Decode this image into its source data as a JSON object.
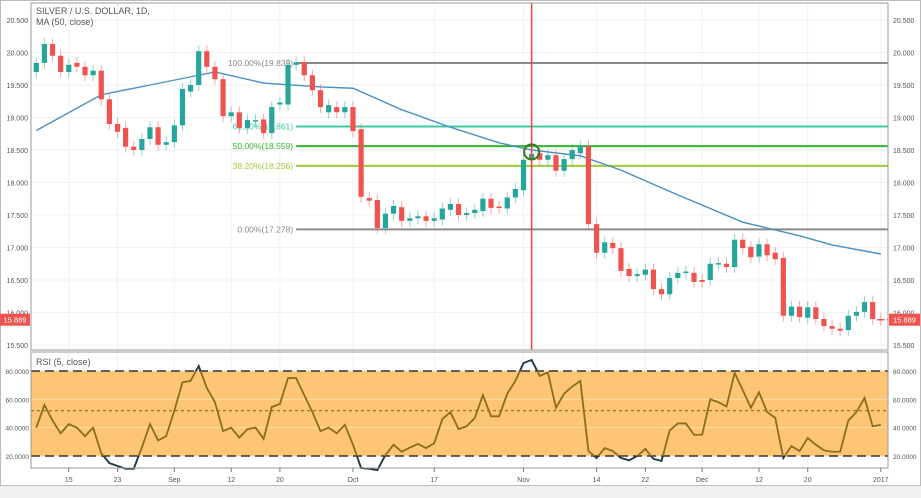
{
  "header": {
    "symbol_title": "SILVER / U.S. DOLLAR, 1D,",
    "ma_label": "MA (50, close)"
  },
  "rsi": {
    "label": "RSI (5, close)",
    "levels": [
      80,
      52,
      20
    ],
    "tick_labels": [
      "80.0000",
      "60.0000",
      "40.0000",
      "20.0000"
    ],
    "tick_values": [
      80,
      60,
      40,
      20
    ],
    "values": [
      40,
      56,
      45,
      36,
      42.5,
      40,
      34,
      40,
      22,
      15,
      13,
      11,
      11,
      26,
      42.5,
      31,
      34,
      52,
      72,
      73,
      83.5,
      68,
      58,
      37.6,
      40,
      33,
      39,
      40,
      32,
      54.6,
      56.7,
      75,
      75,
      63,
      51,
      37.6,
      40,
      36,
      42,
      28,
      11.5,
      11,
      10,
      20.7,
      28,
      23,
      26,
      28.5,
      25.6,
      29,
      46,
      51,
      39,
      41,
      46.8,
      63,
      48,
      48,
      64,
      73,
      85.6,
      87.8,
      76.5,
      79,
      54,
      64,
      69,
      73,
      23.5,
      18.6,
      25.6,
      23.5,
      18.6,
      17,
      20,
      25,
      18,
      16.5,
      38,
      43,
      43,
      35,
      35,
      60,
      58,
      55,
      78.6,
      66.6,
      54,
      65,
      51,
      47,
      18.6,
      27,
      23.5,
      32.7,
      28,
      24,
      23,
      23,
      45,
      51,
      61,
      41,
      42
    ]
  },
  "price_axis": {
    "tick_labels": [
      "20.500",
      "20.000",
      "19.500",
      "19.000",
      "18.500",
      "18.000",
      "17.500",
      "17.000",
      "16.500",
      "16.000",
      "15.500"
    ],
    "tick_values": [
      20.5,
      20,
      19.5,
      19,
      18.5,
      18,
      17.5,
      17,
      16.5,
      16,
      15.5
    ],
    "last_price": "15.889",
    "last_price_value": 15.889
  },
  "date_axis": {
    "ticks": [
      {
        "label": "15",
        "bar": 4
      },
      {
        "label": "23",
        "bar": 10
      },
      {
        "label": "Sep",
        "bar": 17
      },
      {
        "label": "12",
        "bar": 24
      },
      {
        "label": "20",
        "bar": 30
      },
      {
        "label": "Oct",
        "bar": 39
      },
      {
        "label": "17",
        "bar": 49
      },
      {
        "label": "Nov",
        "bar": 60
      },
      {
        "label": "14",
        "bar": 69
      },
      {
        "label": "22",
        "bar": 75
      },
      {
        "label": "Dec",
        "bar": 82
      },
      {
        "label": "12",
        "bar": 89
      },
      {
        "label": "20",
        "bar": 95
      },
      {
        "label": "2017",
        "bar": 104
      }
    ]
  },
  "fibonacci": {
    "start_bar": 32,
    "levels": [
      {
        "label": "100.00%(19.839)",
        "value": 19.839,
        "color": "#8a8a8a"
      },
      {
        "label": "61.80%(18.861)",
        "value": 18.861,
        "color": "#3cc9a0"
      },
      {
        "label": "50.00%(18.559)",
        "value": 18.559,
        "color": "#2fb52f"
      },
      {
        "label": "38.20%(18.256)",
        "value": 18.256,
        "color": "#9ccc34"
      },
      {
        "label": "0.00%(17.278)",
        "value": 17.278,
        "color": "#8a8a8a"
      }
    ]
  },
  "marker": {
    "vertical_line_bar": 61,
    "circle_bar": 61,
    "circle_price": 18.47
  },
  "colors": {
    "up": "#26a69a",
    "down": "#ef5350",
    "ma": "#4a8fc0",
    "rsi_line": "#8a6d1e",
    "rsi_extreme": "#1e3a4c",
    "rsi_band": "#fdc574",
    "marker": "#f04040",
    "circle": "#3c7a28"
  },
  "ma": [
    [
      0,
      18.8
    ],
    [
      8,
      19.35
    ],
    [
      14,
      19.5
    ],
    [
      20,
      19.65
    ],
    [
      22,
      19.7
    ],
    [
      28,
      19.53
    ],
    [
      35,
      19.47
    ],
    [
      39,
      19.45
    ],
    [
      45,
      19.12
    ],
    [
      51,
      18.85
    ],
    [
      57,
      18.61
    ],
    [
      61,
      18.5
    ],
    [
      67,
      18.41
    ],
    [
      72,
      18.19
    ],
    [
      79,
      17.81
    ],
    [
      87,
      17.39
    ],
    [
      90,
      17.3
    ],
    [
      94,
      17.18
    ],
    [
      98,
      17.04
    ],
    [
      104,
      16.9
    ]
  ],
  "candles": [
    [
      19.7,
      19.84
    ],
    [
      19.84,
      20.13
    ],
    [
      20.13,
      19.95
    ],
    [
      19.95,
      19.7
    ],
    [
      19.7,
      19.81
    ],
    [
      19.84,
      19.78
    ],
    [
      19.78,
      19.65
    ],
    [
      19.65,
      19.72
    ],
    [
      19.72,
      19.28
    ],
    [
      19.28,
      18.9
    ],
    [
      18.9,
      18.78
    ],
    [
      18.84,
      18.55
    ],
    [
      18.55,
      18.5
    ],
    [
      18.5,
      18.67
    ],
    [
      18.67,
      18.85
    ],
    [
      18.85,
      18.58
    ],
    [
      18.58,
      18.62
    ],
    [
      18.62,
      18.88
    ],
    [
      18.88,
      19.44
    ],
    [
      19.4,
      19.5
    ],
    [
      19.5,
      20.02
    ],
    [
      20.02,
      19.78
    ],
    [
      19.78,
      19.59
    ],
    [
      19.59,
      19.02
    ],
    [
      19.02,
      19.08
    ],
    [
      19.08,
      18.84
    ],
    [
      18.84,
      18.96
    ],
    [
      18.94,
      18.96
    ],
    [
      18.97,
      18.76
    ],
    [
      18.76,
      19.16
    ],
    [
      19.2,
      19.23
    ],
    [
      19.2,
      19.81
    ],
    [
      19.81,
      19.85
    ],
    [
      19.85,
      19.65
    ],
    [
      19.65,
      19.42
    ],
    [
      19.42,
      19.16
    ],
    [
      19.08,
      19.19
    ],
    [
      19.16,
      19.08
    ],
    [
      19.08,
      19.16
    ],
    [
      19.16,
      18.79
    ],
    [
      18.82,
      17.78
    ],
    [
      17.76,
      17.72
    ],
    [
      17.73,
      17.3
    ],
    [
      17.3,
      17.52
    ],
    [
      17.52,
      17.64
    ],
    [
      17.62,
      17.41
    ],
    [
      17.41,
      17.45
    ],
    [
      17.45,
      17.48
    ],
    [
      17.48,
      17.41
    ],
    [
      17.41,
      17.45
    ],
    [
      17.43,
      17.6
    ],
    [
      17.58,
      17.67
    ],
    [
      17.67,
      17.5
    ],
    [
      17.5,
      17.53
    ],
    [
      17.53,
      17.58
    ],
    [
      17.56,
      17.75
    ],
    [
      17.75,
      17.61
    ],
    [
      17.63,
      17.61
    ],
    [
      17.6,
      17.77
    ],
    [
      17.77,
      17.9
    ],
    [
      17.88,
      18.35
    ],
    [
      18.35,
      18.44
    ],
    [
      18.45,
      18.35
    ],
    [
      18.35,
      18.42
    ],
    [
      18.42,
      18.18
    ],
    [
      18.18,
      18.36
    ],
    [
      18.36,
      18.5
    ],
    [
      18.45,
      18.56
    ],
    [
      18.56,
      17.36
    ],
    [
      17.36,
      16.92
    ],
    [
      16.92,
      17.08
    ],
    [
      17.07,
      16.99
    ],
    [
      16.99,
      16.64
    ],
    [
      16.67,
      16.56
    ],
    [
      16.56,
      16.59
    ],
    [
      16.58,
      16.66
    ],
    [
      16.66,
      16.36
    ],
    [
      16.36,
      16.28
    ],
    [
      16.28,
      16.53
    ],
    [
      16.53,
      16.61
    ],
    [
      16.61,
      16.63
    ],
    [
      16.61,
      16.47
    ],
    [
      16.5,
      16.47
    ],
    [
      16.5,
      16.75
    ],
    [
      16.74,
      16.76
    ],
    [
      16.75,
      16.7
    ],
    [
      16.7,
      17.12
    ],
    [
      17.12,
      16.99
    ],
    [
      17.01,
      16.85
    ],
    [
      16.86,
      17.05
    ],
    [
      17.05,
      16.88
    ],
    [
      16.92,
      16.82
    ],
    [
      16.84,
      15.95
    ],
    [
      15.95,
      16.09
    ],
    [
      16.09,
      15.93
    ],
    [
      15.92,
      16.08
    ],
    [
      16.08,
      15.9
    ],
    [
      15.9,
      15.79
    ],
    [
      15.79,
      15.75
    ],
    [
      15.75,
      15.72
    ],
    [
      15.73,
      15.95
    ],
    [
      15.95,
      16.01
    ],
    [
      16.01,
      16.16
    ],
    [
      16.16,
      15.9
    ],
    [
      15.9,
      15.889
    ]
  ]
}
